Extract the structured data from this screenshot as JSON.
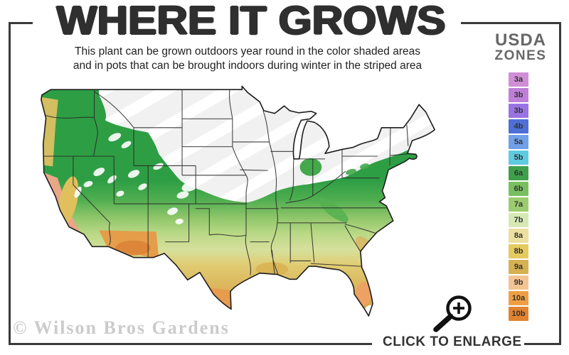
{
  "header": {
    "title": "WHERE IT GROWS",
    "subtitle_line1": "This plant can be grown outdoors year round in the color shaded areas",
    "subtitle_line2": "and in pots that can be brought indoors during winter in the striped area"
  },
  "legend": {
    "title_top": "USDA",
    "title_bottom": "ZONES",
    "zones": [
      {
        "label": "3a",
        "color": "#cf8ed6"
      },
      {
        "label": "3b",
        "color": "#bf7fd8"
      },
      {
        "label": "3b",
        "color": "#9a73e2"
      },
      {
        "label": "4b",
        "color": "#4e6fd6"
      },
      {
        "label": "5a",
        "color": "#70a0e8"
      },
      {
        "label": "5b",
        "color": "#5fcbe0"
      },
      {
        "label": "6a",
        "color": "#3fa04c"
      },
      {
        "label": "6b",
        "color": "#78c05f"
      },
      {
        "label": "7a",
        "color": "#9ccc70"
      },
      {
        "label": "7b",
        "color": "#d6e9b4"
      },
      {
        "label": "8a",
        "color": "#ece0a0"
      },
      {
        "label": "8b",
        "color": "#e5ca5f"
      },
      {
        "label": "9a",
        "color": "#d5b152"
      },
      {
        "label": "9b",
        "color": "#f3c492"
      },
      {
        "label": "10a",
        "color": "#ef9f43"
      },
      {
        "label": "10b",
        "color": "#e1832f"
      }
    ]
  },
  "map": {
    "watermark": "© Wilson Bros Gardens",
    "striped_area_color": "#f1f1f1",
    "stripe_color": "#ffffff",
    "band_colors_north_to_south": [
      "#2e9e44",
      "#4fae50",
      "#8cc468",
      "#b9d885",
      "#d6e09c",
      "#e0cd74",
      "#dcb95f",
      "#d9a84d",
      "#e09242"
    ],
    "frame_color": "#3a3a3a"
  },
  "footer": {
    "enlarge_label": "CLICK TO ENLARGE"
  }
}
